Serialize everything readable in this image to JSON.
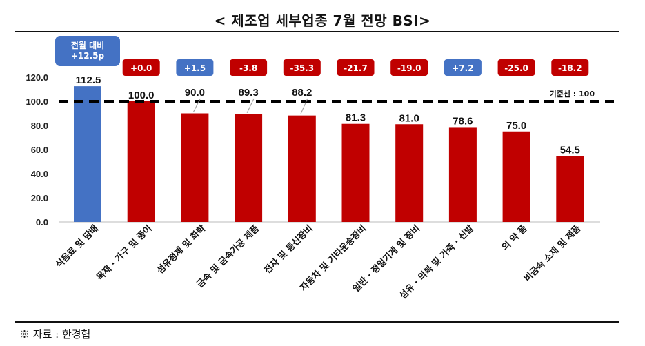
{
  "title": "< 제조업 세부업종 7월 전망 BSI>",
  "source": "※ 자료 : 한경협",
  "colors": {
    "highlight": "#4472C4",
    "bar": "#C00000",
    "positive_badge": "#4472C4",
    "negative_badge": "#C00000"
  },
  "chart_data": {
    "type": "bar",
    "title": "< 제조업 세부업종 7월 전망 BSI>",
    "categories": [
      "식음료 및 담배",
      "목재 · 가구 및 종이",
      "섬유정제 및 화학",
      "금속 및 금속가공 제품",
      "전자 및 통신장비",
      "자동차 및 기타운송장비",
      "일반 · 정밀기계 및 장비",
      "섬유 · 의복 및 가죽 · 신발",
      "의 약 품",
      "비금속 소재 및 제품"
    ],
    "values": [
      112.5,
      100.0,
      90.0,
      89.3,
      88.2,
      81.3,
      81.0,
      78.6,
      75.0,
      54.5
    ],
    "value_labels": [
      "112.5",
      "100.0",
      "90.0",
      "89.3",
      "88.2",
      "81.3",
      "81.0",
      "78.6",
      "75.0",
      "54.5"
    ],
    "change_labels": [
      "전월 대비\n+12.5p",
      "+0.0",
      "+1.5",
      "-3.8",
      "-35.3",
      "-21.7",
      "-19.0",
      "+7.2",
      "-25.0",
      "-18.2"
    ],
    "change_positive": [
      true,
      false,
      true,
      false,
      false,
      false,
      false,
      true,
      false,
      false
    ],
    "highlight_index": 0,
    "yticks": [
      "0.0",
      "20.0",
      "40.0",
      "60.0",
      "80.0",
      "100.0",
      "120.0"
    ],
    "ylim": [
      0,
      120
    ],
    "reference_line": {
      "value": 100,
      "label": "기준선 : 100"
    },
    "grid": false,
    "legend": "none"
  }
}
